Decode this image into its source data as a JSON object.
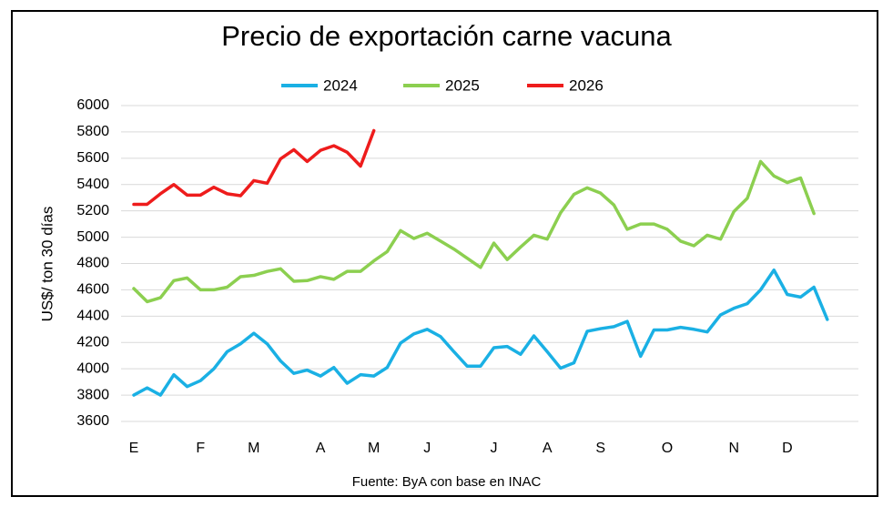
{
  "chart_data": {
    "type": "line",
    "title": "Precio de exportación carne vacuna",
    "ylabel": "US$/ ton 30 días",
    "xlabel": "",
    "source": "Fuente: ByA con base en INAC",
    "ylim": [
      3600,
      6000
    ],
    "yticks": [
      3600,
      3800,
      4000,
      4200,
      4400,
      4600,
      4800,
      5000,
      5200,
      5400,
      5600,
      5800,
      6000
    ],
    "xticks": [
      {
        "label": "E",
        "week": 1
      },
      {
        "label": "F",
        "week": 6
      },
      {
        "label": "M",
        "week": 10
      },
      {
        "label": "A",
        "week": 15
      },
      {
        "label": "M",
        "week": 19
      },
      {
        "label": "J",
        "week": 23
      },
      {
        "label": "J",
        "week": 28
      },
      {
        "label": "A",
        "week": 32
      },
      {
        "label": "S",
        "week": 36
      },
      {
        "label": "O",
        "week": 41
      },
      {
        "label": "N",
        "week": 46
      },
      {
        "label": "D",
        "week": 50
      }
    ],
    "grid": true,
    "legend": "top",
    "series": [
      {
        "name": "2024",
        "color": "#1ab0e4",
        "x": [
          1,
          2,
          3,
          4,
          5,
          6,
          7,
          8,
          9,
          10,
          11,
          12,
          13,
          14,
          15,
          16,
          17,
          18,
          19,
          20,
          21,
          22,
          23,
          24,
          25,
          26,
          27,
          28,
          29,
          30,
          31,
          32,
          33,
          34,
          35,
          36,
          37,
          38,
          39,
          40,
          41,
          42,
          43,
          44,
          45,
          46,
          47,
          48,
          49,
          50,
          51,
          52,
          53
        ],
        "values": [
          3800,
          3855,
          3800,
          3955,
          3865,
          3910,
          4000,
          4130,
          4190,
          4270,
          4190,
          4060,
          3965,
          3990,
          3945,
          4010,
          3890,
          3955,
          3945,
          4010,
          4195,
          4265,
          4300,
          4245,
          4130,
          4020,
          4020,
          4160,
          4170,
          4110,
          4250,
          4130,
          4005,
          4045,
          4285,
          4305,
          4320,
          4360,
          4095,
          4295,
          4295,
          4315,
          4300,
          4280,
          4410,
          4460,
          4495,
          4600,
          4750,
          4565,
          4545,
          4620,
          4375
        ]
      },
      {
        "name": "2025",
        "color": "#8ccf50",
        "x": [
          1,
          2,
          3,
          4,
          5,
          6,
          7,
          8,
          9,
          10,
          11,
          12,
          13,
          14,
          15,
          16,
          17,
          18,
          19,
          20,
          21,
          22,
          23,
          24,
          25,
          26,
          27,
          28,
          29,
          30,
          31,
          32,
          33,
          34,
          35,
          36,
          37,
          38,
          39,
          40,
          41,
          42,
          43,
          44,
          45,
          46,
          47,
          48,
          49,
          50,
          51,
          52
        ],
        "values": [
          4610,
          4510,
          4540,
          4670,
          4690,
          4600,
          4600,
          4620,
          4700,
          4710,
          4740,
          4760,
          4665,
          4670,
          4700,
          4680,
          4740,
          4740,
          4820,
          4890,
          5050,
          4990,
          5030,
          4970,
          4910,
          4840,
          4770,
          4955,
          4830,
          4925,
          5015,
          4985,
          5185,
          5325,
          5375,
          5335,
          5245,
          5060,
          5100,
          5100,
          5060,
          4970,
          4935,
          5015,
          4985,
          5195,
          5295,
          5575,
          5465,
          5415,
          5450,
          5180
        ]
      },
      {
        "name": "2026",
        "color": "#ee1c1c",
        "x": [
          1,
          2,
          3,
          4,
          5,
          6,
          7,
          8,
          9,
          10,
          11,
          12,
          13,
          14,
          15,
          16,
          17,
          18,
          19
        ],
        "values": [
          5250,
          5250,
          5330,
          5400,
          5320,
          5320,
          5380,
          5330,
          5315,
          5430,
          5410,
          5595,
          5665,
          5575,
          5660,
          5695,
          5645,
          5540,
          5810
        ]
      }
    ]
  }
}
